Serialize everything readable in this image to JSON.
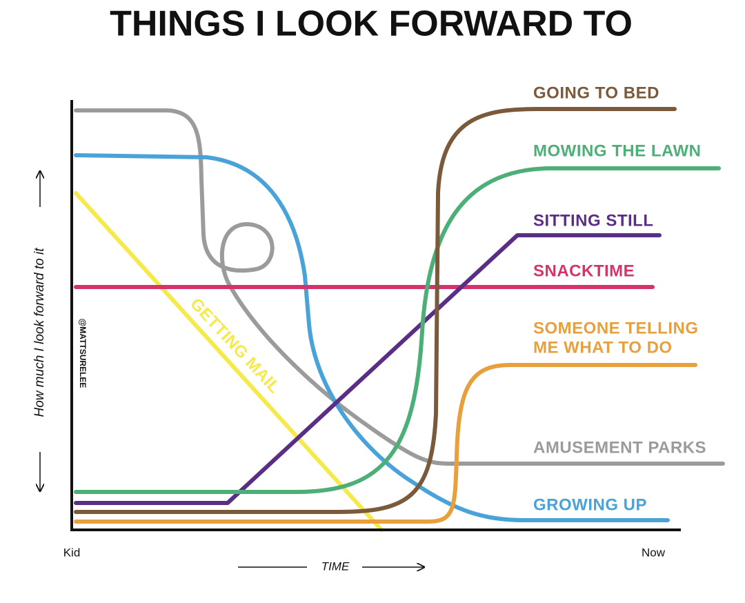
{
  "title": "THINGS I LOOK FORWARD TO",
  "y_axis_label": "How much I look forward to it",
  "x_axis_label": "TIME",
  "x_start": "Kid",
  "x_end": "Now",
  "credit": "@MATTSURELEE",
  "curves": [
    {
      "label": "GOING TO BED"
    },
    {
      "label": "MOWING THE LAWN"
    },
    {
      "label": "SITTING STILL"
    },
    {
      "label": "SNACKTIME"
    },
    {
      "label": "SOMEONE TELLING",
      "label_line2": "ME WHAT TO DO"
    },
    {
      "label": "AMUSEMENT PARKS"
    },
    {
      "label": "GROWING UP"
    },
    {
      "label": "GETTING MAIL"
    }
  ]
}
